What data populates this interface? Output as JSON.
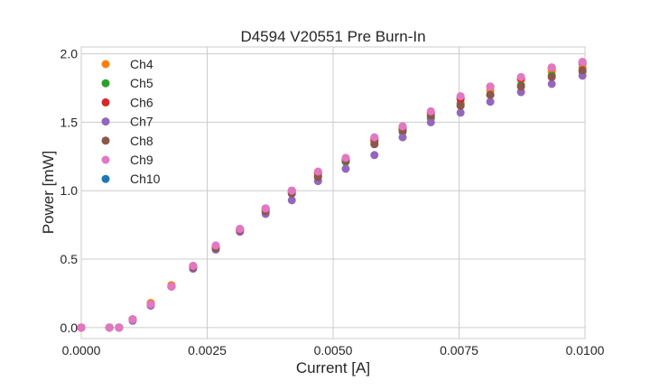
{
  "chart_data": {
    "type": "scatter",
    "title": "D4594 V20551 Pre Burn-In",
    "xlabel": "Current [A]",
    "ylabel": "Power [mW]",
    "xlim": [
      0,
      0.01
    ],
    "ylim": [
      -0.08,
      2.05
    ],
    "grid": true,
    "legend_placement": "top-left",
    "xticks": [
      "0.0000",
      "0.0025",
      "0.0050",
      "0.0075",
      "0.0100"
    ],
    "xtick_values": [
      0,
      0.0025,
      0.005,
      0.0075,
      0.01
    ],
    "yticks": [
      "0.0",
      "0.5",
      "1.0",
      "1.5",
      "2.0"
    ],
    "ytick_values": [
      0,
      0.5,
      1.0,
      1.5,
      2.0
    ],
    "x": [
      0,
      0.00056,
      0.00075,
      0.00102,
      0.00138,
      0.00179,
      0.00222,
      0.00267,
      0.00315,
      0.00366,
      0.00418,
      0.0047,
      0.00525,
      0.00582,
      0.00638,
      0.00694,
      0.00753,
      0.00812,
      0.00873,
      0.00934,
      0.00995
    ],
    "series": [
      {
        "name": "Ch4",
        "color": "#ff7f0e",
        "values": [
          0,
          0,
          0,
          0.06,
          0.18,
          0.31,
          0.45,
          0.59,
          0.72,
          0.86,
          0.99,
          1.11,
          1.22,
          1.36,
          1.45,
          1.54,
          1.64,
          1.73,
          1.81,
          1.87,
          1.9
        ]
      },
      {
        "name": "Ch5",
        "color": "#2ca02c",
        "values": [
          0,
          0,
          0,
          0.06,
          0.17,
          0.3,
          0.44,
          0.58,
          0.71,
          0.85,
          0.98,
          1.1,
          1.21,
          1.34,
          1.43,
          1.53,
          1.63,
          1.7,
          1.77,
          1.84,
          1.87
        ]
      },
      {
        "name": "Ch6",
        "color": "#d62728",
        "values": [
          0,
          0,
          0,
          0.06,
          0.17,
          0.3,
          0.45,
          0.59,
          0.72,
          0.87,
          1.0,
          1.13,
          1.23,
          1.37,
          1.46,
          1.57,
          1.67,
          1.76,
          1.82,
          1.9,
          1.94
        ]
      },
      {
        "name": "Ch7",
        "color": "#9467bd",
        "values": [
          0,
          0,
          0,
          0.05,
          0.16,
          0.3,
          0.43,
          0.57,
          0.7,
          0.83,
          0.93,
          1.07,
          1.16,
          1.26,
          1.39,
          1.5,
          1.57,
          1.65,
          1.72,
          1.78,
          1.84
        ]
      },
      {
        "name": "Ch8",
        "color": "#8c564b",
        "values": [
          0,
          0,
          0,
          0.06,
          0.17,
          0.3,
          0.44,
          0.58,
          0.71,
          0.85,
          0.98,
          1.1,
          1.22,
          1.34,
          1.44,
          1.55,
          1.62,
          1.7,
          1.76,
          1.83,
          1.88
        ]
      },
      {
        "name": "Ch9",
        "color": "#e377c2",
        "values": [
          0,
          0,
          0,
          0.06,
          0.17,
          0.3,
          0.45,
          0.6,
          0.72,
          0.87,
          1.0,
          1.14,
          1.24,
          1.39,
          1.47,
          1.58,
          1.69,
          1.76,
          1.83,
          1.9,
          1.94
        ]
      },
      {
        "name": "Ch10",
        "color": "#1f77b4",
        "values": [
          0,
          0,
          0,
          0.06,
          0.17,
          0.3,
          0.45,
          0.59,
          0.72,
          0.87,
          1.0,
          1.13,
          1.23,
          1.38,
          1.47,
          1.57,
          1.68,
          1.76,
          1.82,
          1.89,
          1.93
        ]
      }
    ]
  }
}
